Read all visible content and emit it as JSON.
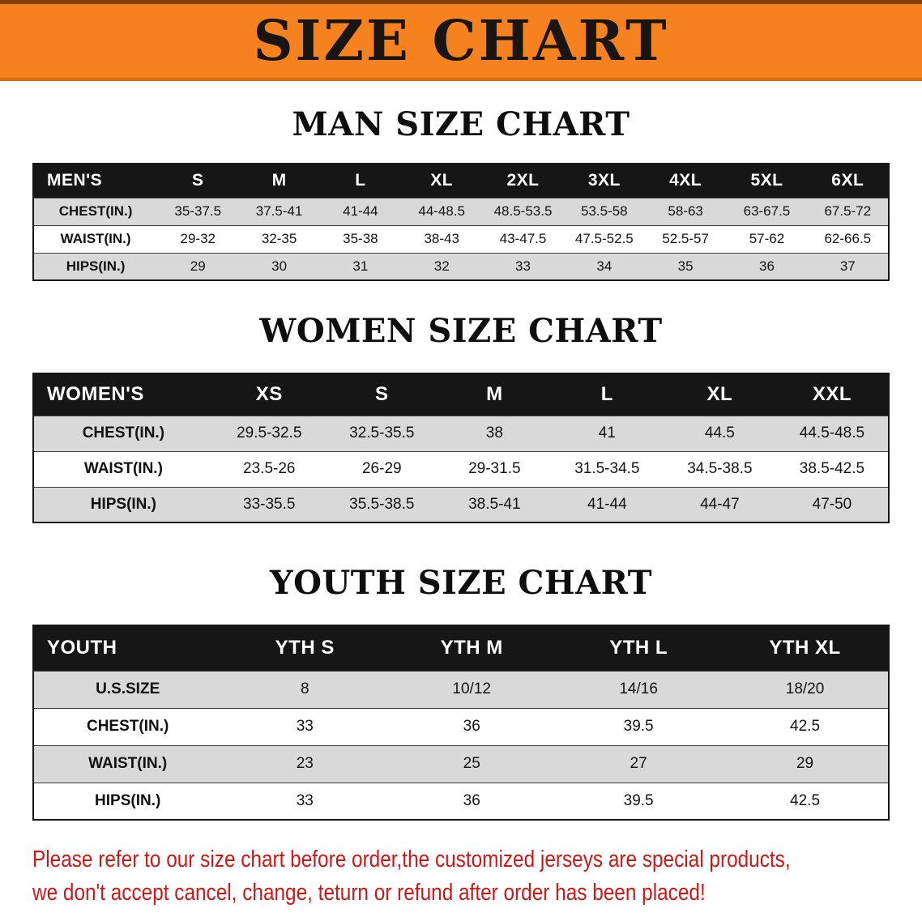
{
  "banner": {
    "title": "SIZE CHART"
  },
  "colors": {
    "banner_bg": "#f5821f",
    "banner_edge_top": "#7e3f09",
    "banner_edge_bottom": "#d96d12",
    "header_bg": "#161616",
    "header_text": "#ffffff",
    "stripe": "#d9d9d9",
    "row_line": "#3c3c3c",
    "text": "#111111",
    "note_red": "#cf1717"
  },
  "sections": [
    {
      "heading": "MAN SIZE CHART",
      "table": {
        "corner": "MEN'S",
        "sizes": [
          "S",
          "M",
          "L",
          "XL",
          "2XL",
          "3XL",
          "4XL",
          "5XL",
          "6XL"
        ],
        "rows": [
          {
            "label": "CHEST(IN.)",
            "values": [
              "35-37.5",
              "37.5-41",
              "41-44",
              "44-48.5",
              "48.5-53.5",
              "53.5-58",
              "58-63",
              "63-67.5",
              "67.5-72"
            ]
          },
          {
            "label": "WAIST(IN.)",
            "values": [
              "29-32",
              "32-35",
              "35-38",
              "38-43",
              "43-47.5",
              "47.5-52.5",
              "52.5-57",
              "57-62",
              "62-66.5"
            ]
          },
          {
            "label": "HIPS(IN.)",
            "values": [
              "29",
              "30",
              "31",
              "32",
              "33",
              "34",
              "35",
              "36",
              "37"
            ]
          }
        ]
      }
    },
    {
      "heading": "WOMEN SIZE CHART",
      "table": {
        "corner": "WOMEN'S",
        "sizes": [
          "XS",
          "S",
          "M",
          "L",
          "XL",
          "XXL"
        ],
        "rows": [
          {
            "label": "CHEST(IN.)",
            "values": [
              "29.5-32.5",
              "32.5-35.5",
              "38",
              "41",
              "44.5",
              "44.5-48.5"
            ]
          },
          {
            "label": "WAIST(IN.)",
            "values": [
              "23.5-26",
              "26-29",
              "29-31.5",
              "31.5-34.5",
              "34.5-38.5",
              "38.5-42.5"
            ]
          },
          {
            "label": "HIPS(IN.)",
            "values": [
              "33-35.5",
              "35.5-38.5",
              "38.5-41",
              "41-44",
              "44-47",
              "47-50"
            ]
          }
        ]
      }
    },
    {
      "heading": "YOUTH SIZE CHART",
      "table": {
        "corner": "YOUTH",
        "sizes": [
          "YTH S",
          "YTH M",
          "YTH L",
          "YTH XL"
        ],
        "rows": [
          {
            "label": "U.S.SIZE",
            "values": [
              "8",
              "10/12",
              "14/16",
              "18/20"
            ]
          },
          {
            "label": "CHEST(IN.)",
            "values": [
              "33",
              "36",
              "39.5",
              "42.5"
            ]
          },
          {
            "label": "WAIST(IN.)",
            "values": [
              "23",
              "25",
              "27",
              "29"
            ]
          },
          {
            "label": "HIPS(IN.)",
            "values": [
              "33",
              "36",
              "39.5",
              "42.5"
            ]
          }
        ]
      }
    }
  ],
  "footer": {
    "lines": [
      "Please refer to our size chart before order,the customized jerseys are special products,",
      "we don't accept cancel, change, teturn or refund after order has been placed!"
    ]
  }
}
